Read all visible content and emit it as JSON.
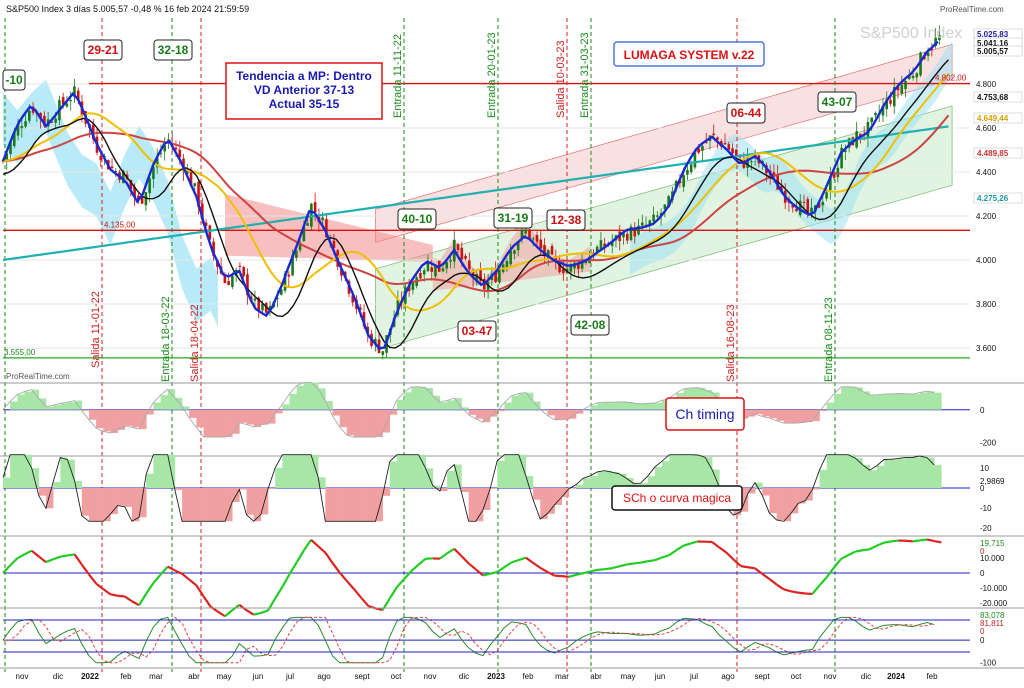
{
  "header": {
    "title_line": "S&P500 Index 3 días 5.005,57 -0,48 % 16 feb 2024 21:59:59",
    "watermark": "S&P500 Index",
    "credit_top": "ProRealTime.com",
    "credit_bottom": "ProRealTime.com"
  },
  "annotations": {
    "system_box": "LUMAGA SYSTEM v.22",
    "trend_box": [
      "Tendencia a MP: Dentro",
      "VD Anterior 37-13",
      "Actual 35-15"
    ],
    "ch_timing": "Ch timing",
    "sch": "SCh o curva magica",
    "count_boxes": [
      {
        "text": "-10",
        "color": "#1a7a1a"
      },
      {
        "text": "29-21",
        "color": "#cc1111"
      },
      {
        "text": "32-18",
        "color": "#1a7a1a"
      },
      {
        "text": "40-10",
        "color": "#1a7a1a"
      },
      {
        "text": "03-47",
        "color": "#cc1111"
      },
      {
        "text": "31-19",
        "color": "#1a7a1a"
      },
      {
        "text": "12-38",
        "color": "#cc1111"
      },
      {
        "text": "42-08",
        "color": "#1a7a1a"
      },
      {
        "text": "06-44",
        "color": "#cc1111"
      },
      {
        "text": "43-07",
        "color": "#1a7a1a"
      }
    ],
    "signals": [
      {
        "text": "Salida 11-01-22",
        "type": "exit"
      },
      {
        "text": "Entrada 18-03-22",
        "type": "entry"
      },
      {
        "text": "Salida 18-04-22",
        "type": "exit"
      },
      {
        "text": "Entrada 11-11-22",
        "type": "entry"
      },
      {
        "text": "Entrada 20-01-23",
        "type": "entry"
      },
      {
        "text": "Salida 10-03-23",
        "type": "exit"
      },
      {
        "text": "Entrada 31-03-23",
        "type": "entry"
      },
      {
        "text": "Salida 16-08-23",
        "type": "exit"
      },
      {
        "text": "Entrada 08-11-23",
        "type": "entry"
      }
    ],
    "level_labels": [
      {
        "text": "4.802,00",
        "color": "#cc1111"
      },
      {
        "text": "4.135,00",
        "color": "#cc1111"
      },
      {
        "text": "3.555,00",
        "color": "#1a8a1a"
      }
    ]
  },
  "chart_data": [
    {
      "type": "candlestick",
      "panel": "price",
      "y_ticks": [
        "4.800",
        "4.600",
        "4.400",
        "4.200",
        "4.000",
        "3.800",
        "3.600"
      ],
      "y_tick_values": [
        4800,
        4600,
        4400,
        4200,
        4000,
        3800,
        3600
      ],
      "ylim": [
        3500,
        5100
      ],
      "right_labels": [
        {
          "text": "5.025,83",
          "value": 5025.83,
          "color": "#1a1ab0"
        },
        {
          "text": "5.041,16",
          "value": 5041.16,
          "color": "#111111"
        },
        {
          "text": "5.005,57",
          "value": 5005.57,
          "color": "#111111"
        },
        {
          "text": "4.753,68",
          "value": 4753.68,
          "color": "#111111"
        },
        {
          "text": "4.649,44",
          "value": 4649.44,
          "color": "#d4a000"
        },
        {
          "text": "4.489,85",
          "value": 4489.85,
          "color": "#cc3333"
        },
        {
          "text": "4.275,26",
          "value": 4275.26,
          "color": "#1a9aa0"
        }
      ],
      "horizontal_levels": [
        4802,
        4135,
        3555
      ],
      "close_path": [
        [
          0,
          4450
        ],
        [
          4,
          4600
        ],
        [
          8,
          4700
        ],
        [
          12,
          4620
        ],
        [
          16,
          4700
        ],
        [
          20,
          4760
        ],
        [
          26,
          4520
        ],
        [
          30,
          4420
        ],
        [
          34,
          4380
        ],
        [
          38,
          4250
        ],
        [
          42,
          4420
        ],
        [
          46,
          4550
        ],
        [
          50,
          4450
        ],
        [
          54,
          4300
        ],
        [
          58,
          4050
        ],
        [
          62,
          3900
        ],
        [
          66,
          3950
        ],
        [
          70,
          3800
        ],
        [
          74,
          3750
        ],
        [
          78,
          3880
        ],
        [
          82,
          4050
        ],
        [
          86,
          4250
        ],
        [
          90,
          4150
        ],
        [
          94,
          3980
        ],
        [
          98,
          3820
        ],
        [
          102,
          3650
        ],
        [
          106,
          3590
        ],
        [
          110,
          3780
        ],
        [
          114,
          3900
        ],
        [
          118,
          3980
        ],
        [
          122,
          3960
        ],
        [
          126,
          4060
        ],
        [
          130,
          3950
        ],
        [
          134,
          3870
        ],
        [
          138,
          3940
        ],
        [
          142,
          4060
        ],
        [
          146,
          4130
        ],
        [
          150,
          4050
        ],
        [
          154,
          3980
        ],
        [
          158,
          3960
        ],
        [
          162,
          4000
        ],
        [
          166,
          4050
        ],
        [
          170,
          4080
        ],
        [
          174,
          4120
        ],
        [
          178,
          4140
        ],
        [
          182,
          4180
        ],
        [
          186,
          4260
        ],
        [
          190,
          4400
        ],
        [
          194,
          4500
        ],
        [
          198,
          4560
        ],
        [
          202,
          4520
        ],
        [
          206,
          4440
        ],
        [
          210,
          4460
        ],
        [
          214,
          4390
        ],
        [
          218,
          4300
        ],
        [
          222,
          4250
        ],
        [
          226,
          4200
        ],
        [
          230,
          4320
        ],
        [
          234,
          4480
        ],
        [
          238,
          4560
        ],
        [
          242,
          4600
        ],
        [
          246,
          4700
        ],
        [
          250,
          4780
        ],
        [
          254,
          4850
        ],
        [
          258,
          4960
        ],
        [
          262,
          5020
        ]
      ]
    },
    {
      "type": "area",
      "panel": "ch-timing",
      "y_ticks": [
        "0",
        "-200"
      ],
      "y_tick_values": [
        0,
        -200
      ],
      "ylim": [
        -260,
        140
      ]
    },
    {
      "type": "area",
      "panel": "sch",
      "y_ticks": [
        "10",
        "0",
        "-10",
        "-20"
      ],
      "y_tick_values": [
        10,
        0,
        -10,
        -20
      ],
      "ylim": [
        -22,
        14
      ],
      "right_label": "2,9869"
    },
    {
      "type": "line",
      "panel": "osc-3",
      "y_ticks": [
        "10.000",
        "0",
        "-10.000",
        "-20.000"
      ],
      "y_tick_values": [
        10000,
        0,
        -10000,
        -20000
      ],
      "ylim": [
        -22000,
        22000
      ],
      "right_labels": [
        "19,715",
        "0"
      ]
    },
    {
      "type": "line",
      "panel": "osc-4",
      "y_ticks": [
        "0",
        "-100"
      ],
      "y_tick_values": [
        0,
        -100
      ],
      "ylim": [
        -115,
        125
      ],
      "right_labels": [
        "83,078",
        "81,811",
        "0"
      ]
    }
  ],
  "x_axis": {
    "labels": [
      "nov",
      "dic",
      "2022",
      "feb",
      "mar",
      "abr",
      "may",
      "jun",
      "jul",
      "ago",
      "sept",
      "oct",
      "nov",
      "dic",
      "2023",
      "feb",
      "mar",
      "abr",
      "may",
      "jun",
      "jul",
      "ago",
      "sept",
      "oct",
      "nov",
      "dic",
      "2024",
      "feb"
    ],
    "bold_labels": [
      "2022",
      "2023",
      "2024"
    ]
  },
  "colors": {
    "up_candle": "#1a7a1a",
    "down_candle": "#cc1111",
    "price_line": "#1a2ad0",
    "ma_black": "#111111",
    "ma_yellow": "#f0c000",
    "ma_red": "#cc4444",
    "ma_teal": "#20b0b0",
    "level_red": "#dd1111",
    "level_green": "#22aa22",
    "entry_line": "#1a8a1a",
    "exit_line": "#cc2222",
    "blue_axis": "#2020c0"
  }
}
